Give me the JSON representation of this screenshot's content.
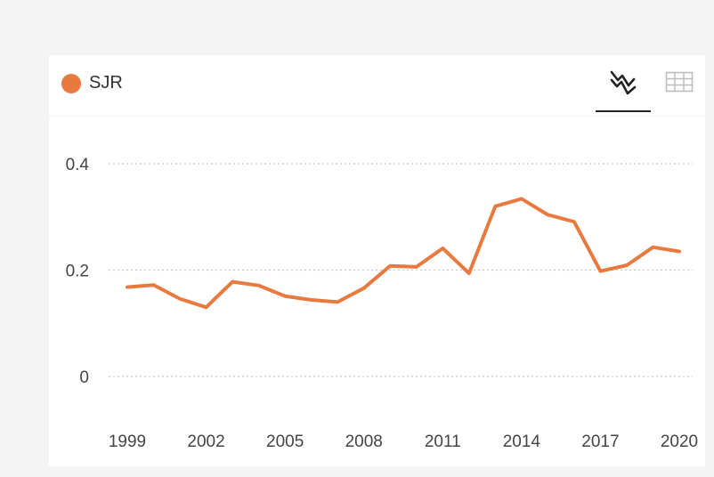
{
  "legend": {
    "label": "SJR",
    "color": "#e87a3f"
  },
  "toolbar": {
    "chart_view_icon": "line-chart-icon",
    "table_view_icon": "table-grid-icon",
    "active_view": "chart"
  },
  "chart_data": {
    "type": "line",
    "x": [
      1999,
      2000,
      2001,
      2002,
      2003,
      2004,
      2005,
      2006,
      2007,
      2008,
      2009,
      2010,
      2011,
      2012,
      2013,
      2014,
      2015,
      2016,
      2017,
      2018,
      2019,
      2020
    ],
    "series": [
      {
        "name": "SJR",
        "color": "#e87a3f",
        "values": [
          0.168,
          0.172,
          0.146,
          0.13,
          0.178,
          0.171,
          0.151,
          0.144,
          0.14,
          0.166,
          0.208,
          0.206,
          0.241,
          0.194,
          0.32,
          0.334,
          0.304,
          0.291,
          0.198,
          0.209,
          0.243,
          0.235
        ]
      }
    ],
    "xticks": [
      "1999",
      "2002",
      "2005",
      "2008",
      "2011",
      "2014",
      "2017",
      "2020"
    ],
    "yticks": [
      "0",
      "0.2",
      "0.4"
    ],
    "ylim": [
      0,
      0.4
    ],
    "grid": true,
    "grid_style": "dotted",
    "legend_position": "top-left"
  }
}
